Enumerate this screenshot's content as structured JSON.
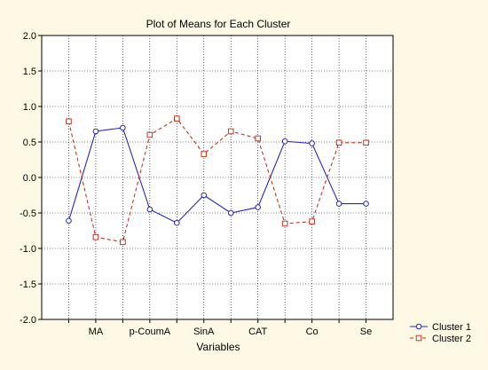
{
  "chart_data": {
    "type": "line",
    "title": "Plot of Means for Each Cluster",
    "xlabel": "Variables",
    "ylabel": "",
    "ylim": [
      -2.0,
      2.0
    ],
    "yticks": [
      "-2.0",
      "-1.5",
      "-1.0",
      "-0.5",
      "0.0",
      "0.5",
      "1.0",
      "1.5",
      "2.0"
    ],
    "categories": [
      "",
      "MA",
      "",
      "p-CoumA",
      "",
      "SinA",
      "",
      "CAT",
      "",
      "Co",
      "",
      "Se"
    ],
    "grid": true,
    "legend_position": "bottom-right",
    "series": [
      {
        "name": "Cluster 1",
        "color": "#2626c8",
        "line_style": "solid",
        "marker": "circle",
        "values": [
          -0.61,
          0.65,
          0.7,
          -0.45,
          -0.64,
          -0.25,
          -0.5,
          -0.42,
          0.51,
          0.48,
          -0.37,
          -0.37
        ]
      },
      {
        "name": "Cluster 2",
        "color": "#c8321e",
        "line_style": "dashed",
        "marker": "square",
        "values": [
          0.79,
          -0.84,
          -0.91,
          0.6,
          0.83,
          0.33,
          0.65,
          0.55,
          -0.65,
          -0.62,
          0.49,
          0.49
        ]
      }
    ]
  }
}
